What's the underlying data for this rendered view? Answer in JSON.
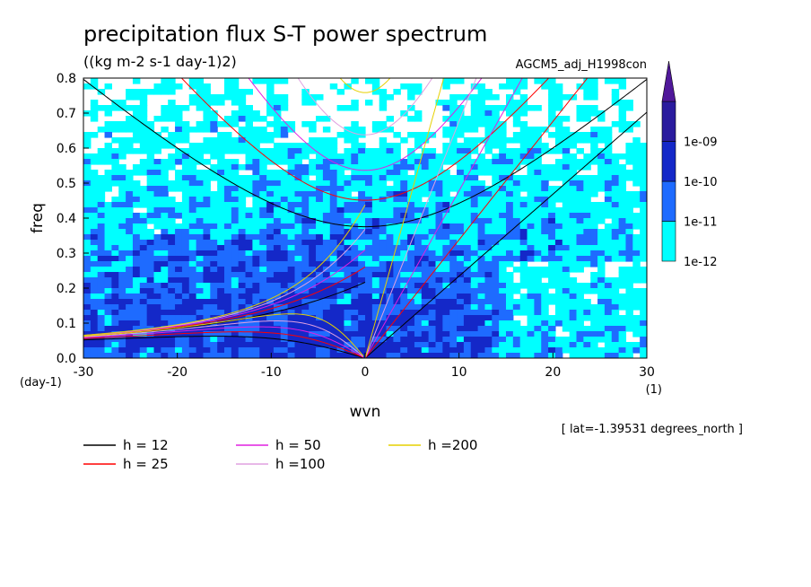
{
  "chart_data": {
    "type": "heatmap",
    "title": "precipitation flux S-T power spectrum",
    "subtitle": "((kg m-2 s-1 day-1)2)",
    "model_label": "AGCM5_adj_H1998con",
    "xlabel": "wvn",
    "ylabel": "freq",
    "x_unit": "(1)",
    "y_unit": "(day-1)",
    "xlim": [
      -30,
      30
    ],
    "ylim": [
      0,
      0.8
    ],
    "x_ticks": [
      -30,
      -20,
      -10,
      0,
      10,
      20,
      30
    ],
    "y_ticks": [
      0.0,
      0.1,
      0.2,
      0.3,
      0.4,
      0.5,
      0.6,
      0.7,
      0.8
    ],
    "x_tick_labels": [
      "-30",
      "-20",
      "-10",
      "0",
      "10",
      "20",
      "30"
    ],
    "y_tick_labels": [
      "0.0",
      "0.1",
      "0.2",
      "0.3",
      "0.4",
      "0.5",
      "0.6",
      "0.7",
      "0.8"
    ],
    "annotation": "[ lat=-1.39531 degrees_north ]",
    "colorbar": {
      "levels": [
        "1e-12",
        "1e-11",
        "1e-10",
        "1e-09"
      ],
      "colors": [
        "#00ffff",
        "#1e6bff",
        "#1428c8",
        "#2a1b9e",
        "#50189a"
      ],
      "extend": "max"
    },
    "dispersion_curves": [
      {
        "name": "h = 12",
        "h": 12,
        "color": "#000000"
      },
      {
        "name": "h = 25",
        "h": 25,
        "color": "#ff0000"
      },
      {
        "name": "h = 50",
        "h": 50,
        "color": "#e020e0"
      },
      {
        "name": "h =100",
        "h": 100,
        "color": "#e0a0e0"
      },
      {
        "name": "h =200",
        "h": 200,
        "color": "#e6d000"
      }
    ],
    "grid": false,
    "legend_position": "bottom-left"
  }
}
